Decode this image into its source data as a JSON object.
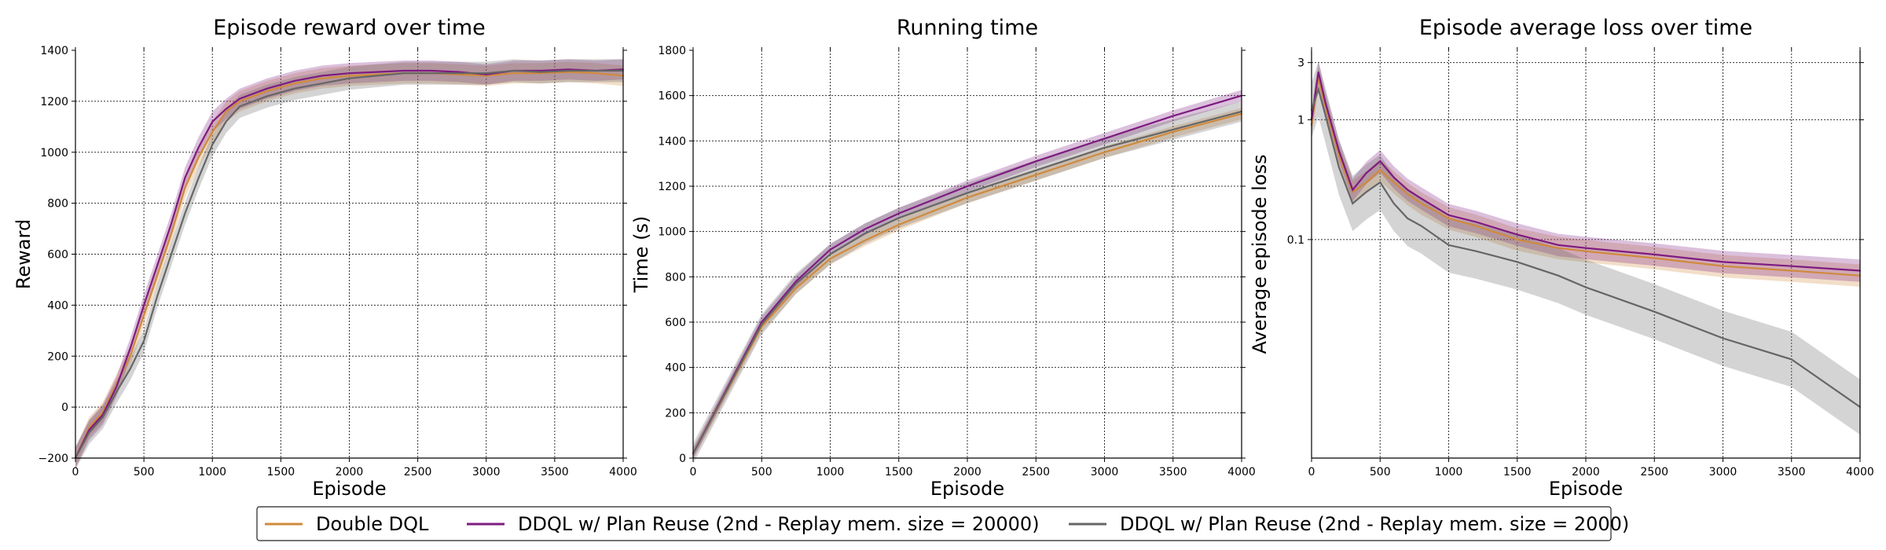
{
  "colors": {
    "double_dql": "#d08a3c",
    "ddql_20000": "#7e1b80",
    "ddql_2000": "#666666"
  },
  "legend": {
    "placement": "bottom-center",
    "entries": [
      {
        "label": "Double DQL",
        "color": "#d08a3c"
      },
      {
        "label": "DDQL w/ Plan Reuse (2nd - Replay mem. size = 20000)",
        "color": "#7e1b80"
      },
      {
        "label": "DDQL w/ Plan Reuse (2nd - Replay mem. size = 2000)",
        "color": "#666666"
      }
    ]
  },
  "chart_data": [
    {
      "type": "line",
      "title": "Episode reward over time",
      "xlabel": "Episode",
      "ylabel": "Reward",
      "xlim": [
        0,
        4000
      ],
      "ylim": [
        -200,
        1400
      ],
      "xticks": [
        0,
        500,
        1000,
        1500,
        2000,
        2500,
        3000,
        3500,
        4000
      ],
      "yticks": [
        -200,
        0,
        200,
        400,
        600,
        800,
        1000,
        1200,
        1400
      ],
      "ytick_labels": [
        "−200",
        "0",
        "200",
        "400",
        "600",
        "800",
        "1000",
        "1200",
        "1400"
      ],
      "grid": true,
      "x": [
        0,
        100,
        200,
        300,
        400,
        500,
        600,
        700,
        800,
        900,
        1000,
        1100,
        1200,
        1400,
        1600,
        1800,
        2000,
        2200,
        2400,
        2600,
        2800,
        3000,
        3200,
        3400,
        3600,
        3800,
        4000
      ],
      "series": [
        {
          "name": "Double DQL",
          "color": "#d08a3c",
          "values": [
            -200,
            -80,
            -20,
            90,
            200,
            360,
            520,
            680,
            860,
            980,
            1080,
            1160,
            1200,
            1240,
            1270,
            1290,
            1300,
            1305,
            1310,
            1310,
            1305,
            1300,
            1310,
            1310,
            1315,
            1310,
            1300
          ],
          "band": 40
        },
        {
          "name": "DDQL w/ Plan Reuse (2nd - Replay mem. size = 20000)",
          "color": "#7e1b80",
          "values": [
            -200,
            -90,
            -30,
            80,
            230,
            400,
            560,
            720,
            900,
            1020,
            1120,
            1170,
            1210,
            1250,
            1280,
            1300,
            1310,
            1315,
            1320,
            1320,
            1315,
            1305,
            1320,
            1320,
            1325,
            1320,
            1325
          ],
          "band": 40
        },
        {
          "name": "DDQL w/ Plan Reuse (2nd - Replay mem. size = 2000)",
          "color": "#666666",
          "values": [
            -200,
            -100,
            -40,
            60,
            150,
            260,
            440,
            600,
            760,
            900,
            1030,
            1120,
            1180,
            1220,
            1250,
            1270,
            1290,
            1300,
            1310,
            1310,
            1310,
            1310,
            1320,
            1315,
            1320,
            1320,
            1320
          ],
          "band": 45
        }
      ]
    },
    {
      "type": "line",
      "title": "Running time",
      "xlabel": "Episode",
      "ylabel": "Time (s)",
      "xlim": [
        0,
        4000
      ],
      "ylim": [
        0,
        1800
      ],
      "xticks": [
        0,
        500,
        1000,
        1500,
        2000,
        2500,
        3000,
        3500,
        4000
      ],
      "yticks": [
        0,
        200,
        400,
        600,
        800,
        1000,
        1200,
        1400,
        1600,
        1800
      ],
      "ytick_labels": [
        "0",
        "200",
        "400",
        "600",
        "800",
        "1000",
        "1200",
        "1400",
        "1600",
        "1800"
      ],
      "grid": true,
      "x": [
        0,
        250,
        500,
        750,
        1000,
        1250,
        1500,
        2000,
        2500,
        3000,
        3500,
        4000
      ],
      "series": [
        {
          "name": "Double DQL",
          "color": "#d08a3c",
          "values": [
            20,
            300,
            580,
            750,
            880,
            960,
            1030,
            1150,
            1250,
            1350,
            1440,
            1520
          ],
          "band": 25
        },
        {
          "name": "DDQL w/ Plan Reuse (2nd - Replay mem. size = 20000)",
          "color": "#7e1b80",
          "values": [
            20,
            310,
            600,
            780,
            920,
            1010,
            1080,
            1200,
            1310,
            1410,
            1510,
            1600
          ],
          "band": 25
        },
        {
          "name": "DDQL w/ Plan Reuse (2nd - Replay mem. size = 2000)",
          "color": "#666666",
          "values": [
            20,
            305,
            590,
            770,
            900,
            990,
            1060,
            1170,
            1270,
            1370,
            1450,
            1530
          ],
          "band": 45
        }
      ]
    },
    {
      "type": "line",
      "title": "Episode average loss over time",
      "xlabel": "Episode",
      "ylabel": "Average episode loss",
      "yscale": "log",
      "xlim": [
        0,
        4000
      ],
      "ylim": [
        0.0015,
        3.8
      ],
      "xticks": [
        0,
        500,
        1000,
        1500,
        2000,
        2500,
        3000,
        3500,
        4000
      ],
      "yticks": [
        0.1,
        1,
        3
      ],
      "ytick_labels": [
        "0.1",
        "1",
        "3"
      ],
      "grid": true,
      "x": [
        0,
        50,
        100,
        200,
        300,
        400,
        500,
        600,
        700,
        800,
        1000,
        1200,
        1500,
        1800,
        2000,
        2500,
        3000,
        3500,
        4000
      ],
      "series": [
        {
          "name": "Double DQL",
          "color": "#d08a3c",
          "values": [
            0.9,
            2.2,
            1.3,
            0.5,
            0.25,
            0.3,
            0.38,
            0.3,
            0.24,
            0.2,
            0.15,
            0.13,
            0.1,
            0.085,
            0.08,
            0.07,
            0.06,
            0.055,
            0.05
          ],
          "band": 0.12
        },
        {
          "name": "DDQL w/ Plan Reuse (2nd - Replay mem. size = 20000)",
          "color": "#7e1b80",
          "values": [
            1.0,
            2.5,
            1.4,
            0.55,
            0.26,
            0.36,
            0.45,
            0.33,
            0.26,
            0.22,
            0.16,
            0.14,
            0.11,
            0.09,
            0.085,
            0.075,
            0.065,
            0.06,
            0.055
          ],
          "band": 0.12
        },
        {
          "name": "DDQL w/ Plan Reuse (2nd - Replay mem. size = 2000)",
          "color": "#666666",
          "values": [
            1.2,
            1.8,
            1.1,
            0.4,
            0.2,
            0.25,
            0.3,
            0.2,
            0.15,
            0.13,
            0.09,
            0.08,
            0.065,
            0.05,
            0.04,
            0.025,
            0.015,
            0.01,
            0.004
          ],
          "band": 0.35
        }
      ]
    }
  ]
}
